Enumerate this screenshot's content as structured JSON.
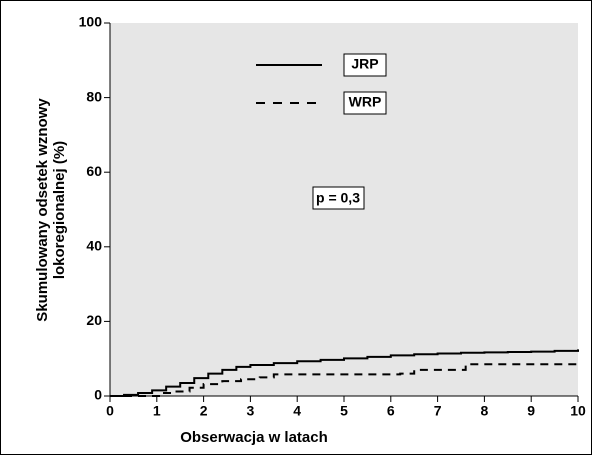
{
  "chart_data": {
    "type": "step-line",
    "y_label": [
      "Skumulowany odsetek wznowy",
      "lokoregionalnej (%)"
    ],
    "x_label": "Obserwacja w  latach",
    "annotation": "p = 0,3",
    "xlim": [
      0,
      10
    ],
    "xticks": [
      0,
      1,
      2,
      3,
      4,
      5,
      6,
      7,
      8,
      9,
      10
    ],
    "ylim": [
      0,
      100
    ],
    "yticks": [
      0,
      20,
      40,
      60,
      80,
      100
    ],
    "background": "#e6e6e6",
    "series": [
      {
        "name": "JRP",
        "color": "#000000",
        "dash": false,
        "x": [
          0,
          0.3,
          0.6,
          0.9,
          1.2,
          1.5,
          1.8,
          2.1,
          2.4,
          2.7,
          3,
          3.5,
          4,
          4.5,
          5,
          5.5,
          6,
          6.5,
          7,
          7.5,
          8,
          8.5,
          9,
          9.5,
          10
        ],
        "values": [
          0,
          0.3,
          0.8,
          1.5,
          2.5,
          3.5,
          4.8,
          6,
          7,
          7.8,
          8.3,
          8.8,
          9.3,
          9.7,
          10.1,
          10.5,
          10.9,
          11.2,
          11.4,
          11.6,
          11.7,
          11.8,
          11.9,
          12.1,
          12.5
        ]
      },
      {
        "name": "WRP",
        "color": "#000000",
        "dash": true,
        "x": [
          0,
          0.9,
          1.1,
          1.4,
          1.7,
          2,
          2.4,
          2.8,
          3.2,
          3.5,
          4.5,
          5.5,
          6.2,
          6.5,
          7,
          7.6,
          8,
          9,
          10
        ],
        "values": [
          0,
          0,
          0.8,
          1.2,
          2.2,
          3.2,
          4,
          4.5,
          5,
          5.8,
          5.8,
          5.8,
          6,
          7,
          7,
          8.5,
          8.5,
          8.5,
          8.5
        ]
      }
    ]
  }
}
